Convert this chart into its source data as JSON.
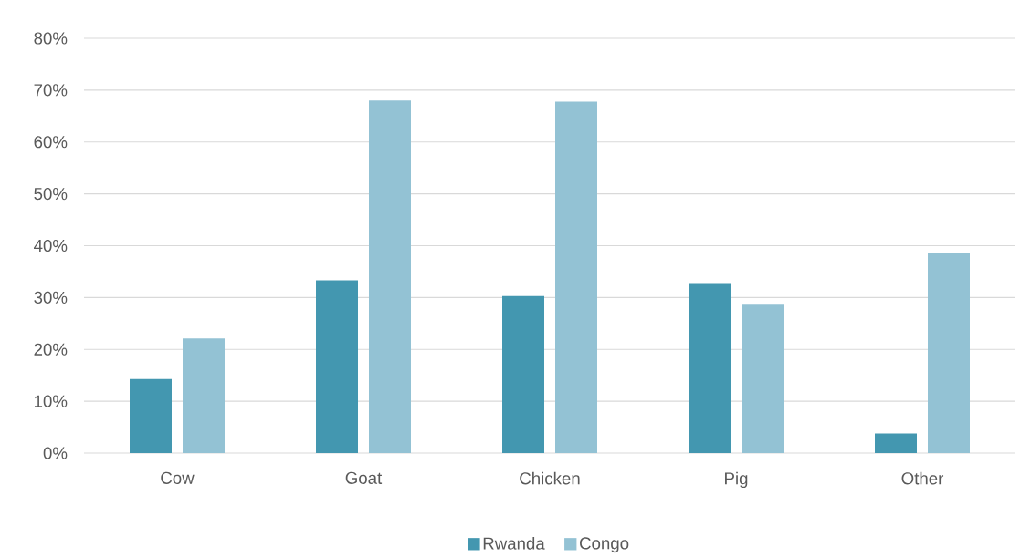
{
  "chart_data": {
    "type": "bar",
    "categories": [
      "Cow",
      "Goat",
      "Chicken",
      "Pig",
      "Other"
    ],
    "series": [
      {
        "name": "Rwanda",
        "color": "#4397b0",
        "values": [
          14.3,
          33.3,
          30.3,
          32.8,
          3.8
        ]
      },
      {
        "name": "Congo",
        "color": "#93c2d4",
        "values": [
          22.1,
          68.0,
          67.8,
          28.6,
          38.6
        ]
      }
    ],
    "ylim": [
      0,
      80
    ],
    "yticks": [
      {
        "value": 0,
        "label": "0%"
      },
      {
        "value": 10,
        "label": "10%"
      },
      {
        "value": 20,
        "label": "20%"
      },
      {
        "value": 30,
        "label": "30%"
      },
      {
        "value": 40,
        "label": "40%"
      },
      {
        "value": 50,
        "label": "50%"
      },
      {
        "value": 60,
        "label": "60%"
      },
      {
        "value": 70,
        "label": "70%"
      },
      {
        "value": 80,
        "label": "80%"
      }
    ],
    "grid": "y",
    "legend": "bottom"
  }
}
